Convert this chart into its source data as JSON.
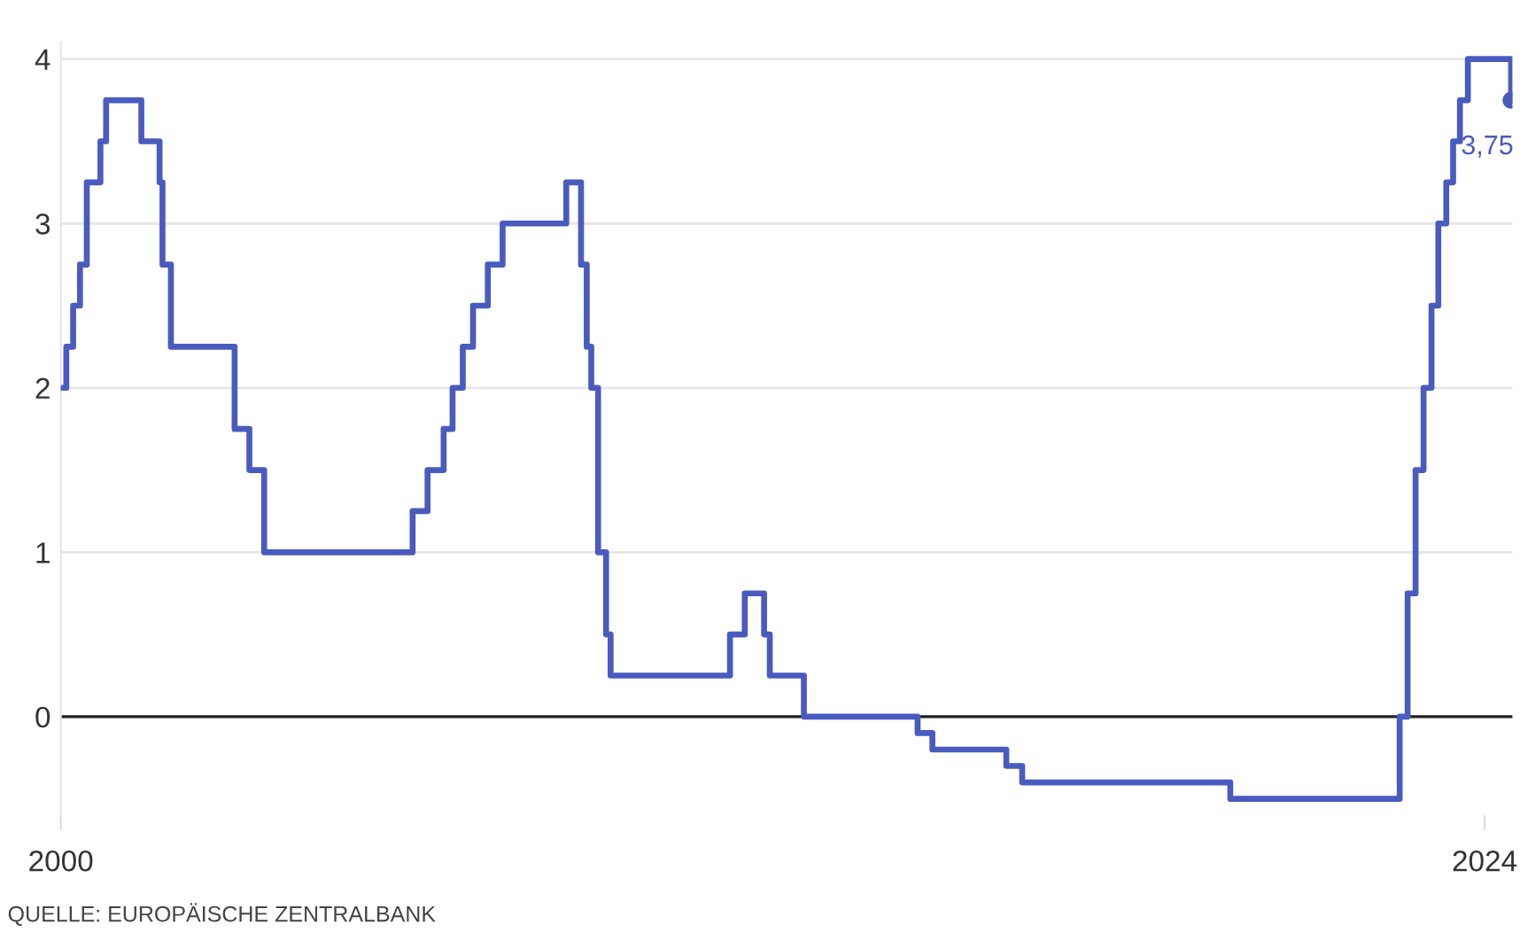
{
  "chart_data": {
    "type": "step",
    "x": [
      "2000-01-01",
      "2000-02-04",
      "2000-03-17",
      "2000-04-28",
      "2000-06-09",
      "2000-09-01",
      "2000-10-06",
      "2001-05-11",
      "2001-08-31",
      "2001-09-18",
      "2001-11-09",
      "2002-12-06",
      "2003-03-07",
      "2003-06-06",
      "2005-12-06",
      "2006-03-08",
      "2006-06-15",
      "2006-08-09",
      "2006-10-11",
      "2006-12-13",
      "2007-03-14",
      "2007-06-13",
      "2008-07-09",
      "2008-10-08",
      "2008-11-12",
      "2008-12-10",
      "2009-01-21",
      "2009-03-11",
      "2009-04-08",
      "2011-04-13",
      "2011-07-13",
      "2011-11-09",
      "2011-12-14",
      "2012-07-11",
      "2014-06-11",
      "2014-09-10",
      "2015-12-09",
      "2016-03-16",
      "2019-09-18",
      "2022-07-27",
      "2022-09-14",
      "2022-11-02",
      "2022-12-21",
      "2023-02-08",
      "2023-03-22",
      "2023-05-10",
      "2023-06-21",
      "2023-08-02",
      "2023-09-20",
      "2024-06-12"
    ],
    "series": [
      {
        "color": "#4a5bbf",
        "values": [
          2.0,
          2.25,
          2.5,
          2.75,
          3.25,
          3.5,
          3.75,
          3.5,
          3.25,
          2.75,
          2.25,
          1.75,
          1.5,
          1.0,
          1.25,
          1.5,
          1.75,
          2.0,
          2.25,
          2.5,
          2.75,
          3.0,
          3.25,
          2.75,
          2.25,
          2.0,
          1.0,
          0.5,
          0.25,
          0.5,
          0.75,
          0.5,
          0.25,
          0.0,
          -0.1,
          -0.2,
          -0.3,
          -0.4,
          -0.5,
          0.0,
          0.75,
          1.5,
          2.0,
          2.5,
          3.0,
          3.25,
          3.5,
          3.75,
          4.0,
          3.75
        ],
        "value_labels": [
          null,
          null,
          null,
          null,
          null,
          null,
          null,
          null,
          null,
          null,
          null,
          null,
          null,
          null,
          null,
          null,
          null,
          null,
          null,
          null,
          null,
          null,
          null,
          null,
          null,
          null,
          null,
          null,
          null,
          null,
          null,
          null,
          null,
          null,
          null,
          null,
          null,
          null,
          null,
          null,
          null,
          null,
          null,
          null,
          null,
          null,
          null,
          null,
          null,
          "3,75"
        ]
      }
    ],
    "xlim": [
      "2000-01-01",
      "2024-06-20"
    ],
    "xticks": [
      "2000",
      "2024"
    ],
    "ylim": [
      -0.6,
      4.1
    ],
    "yticks": [
      0,
      1,
      2,
      3,
      4
    ],
    "grid": "y",
    "line_style": "solid",
    "ref_lines": [
      {
        "axis": "y",
        "value": 0,
        "color": "#222222"
      }
    ],
    "annotations": [
      "QUELLE: EUROPÄISCHE ZENTRALBANK"
    ]
  }
}
